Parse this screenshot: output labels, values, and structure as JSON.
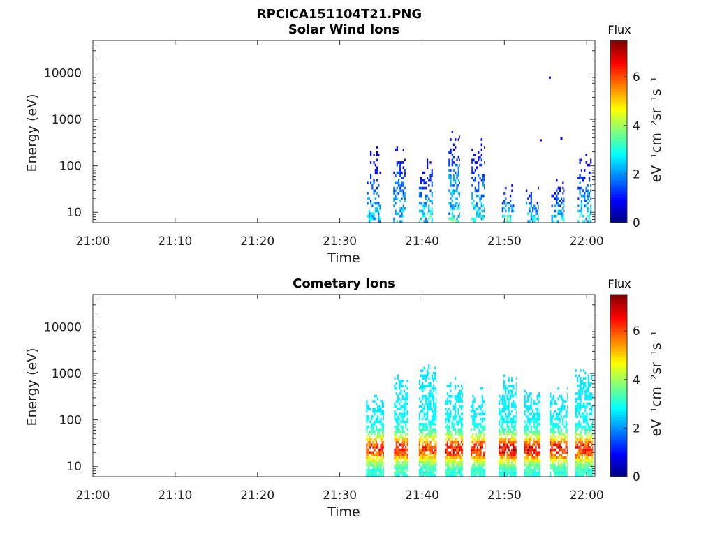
{
  "figure_title": "RPCICA151104T21.PNG",
  "chart_data": [
    {
      "type": "heatmap",
      "title": "Solar Wind Ions",
      "xlabel": "Time",
      "ylabel": "Energy (eV)",
      "x_tick_labels": [
        "21:00",
        "21:10",
        "21:20",
        "21:30",
        "21:40",
        "21:50",
        "22:00"
      ],
      "x_tick_minutes": [
        0,
        10,
        20,
        30,
        40,
        50,
        60
      ],
      "xlim_minutes": [
        0,
        61
      ],
      "y_scale": "log",
      "ylim": [
        6,
        50000
      ],
      "y_tick_labels": [
        "10",
        "100",
        "1000",
        "10000"
      ],
      "y_tick_values": [
        10,
        100,
        1000,
        10000
      ],
      "colorbar": {
        "title": "Flux",
        "label": "eV⁻¹cm⁻²sr⁻¹s⁻¹",
        "range": [
          0,
          7.5
        ],
        "tick_labels": [
          "0",
          "2",
          "4",
          "6"
        ],
        "tick_values": [
          0,
          2,
          4,
          6
        ],
        "colormap": "jet"
      },
      "bursts": [
        {
          "t_start": 33.3,
          "t_end": 35.0,
          "e_top": 300,
          "peak_flux": 3.2
        },
        {
          "t_start": 36.5,
          "t_end": 38.0,
          "e_top": 320,
          "peak_flux": 3.4
        },
        {
          "t_start": 39.6,
          "t_end": 41.3,
          "e_top": 170,
          "peak_flux": 3.6
        },
        {
          "t_start": 43.2,
          "t_end": 44.6,
          "e_top": 800,
          "peak_flux": 3.8
        },
        {
          "t_start": 46.0,
          "t_end": 47.6,
          "e_top": 420,
          "peak_flux": 3.4
        },
        {
          "t_start": 49.7,
          "t_end": 51.2,
          "e_top": 50,
          "peak_flux": 3.8
        },
        {
          "t_start": 52.6,
          "t_end": 54.2,
          "e_top": 40,
          "peak_flux": 3.6
        },
        {
          "t_start": 55.7,
          "t_end": 57.3,
          "e_top": 60,
          "peak_flux": 3.4
        },
        {
          "t_start": 58.9,
          "t_end": 60.6,
          "e_top": 200,
          "peak_flux": 3.4
        }
      ],
      "isolated_points": [
        {
          "t": 55.4,
          "e": 7800,
          "flux": 1.0
        },
        {
          "t": 56.8,
          "e": 380,
          "flux": 1.0
        },
        {
          "t": 54.3,
          "e": 350,
          "flux": 1.0
        }
      ]
    },
    {
      "type": "heatmap",
      "title": "Cometary Ions",
      "xlabel": "Time",
      "ylabel": "Energy (eV)",
      "x_tick_labels": [
        "21:00",
        "21:10",
        "21:20",
        "21:30",
        "21:40",
        "21:50",
        "22:00"
      ],
      "x_tick_minutes": [
        0,
        10,
        20,
        30,
        40,
        50,
        60
      ],
      "xlim_minutes": [
        0,
        61
      ],
      "y_scale": "log",
      "ylim": [
        6,
        50000
      ],
      "y_tick_labels": [
        "10",
        "100",
        "1000",
        "10000"
      ],
      "y_tick_values": [
        10,
        100,
        1000,
        10000
      ],
      "colorbar": {
        "title": "Flux",
        "label": "eV⁻¹cm⁻²sr⁻¹s⁻¹",
        "range": [
          0,
          7.5
        ],
        "tick_labels": [
          "0",
          "2",
          "4",
          "6"
        ],
        "tick_values": [
          0,
          2,
          4,
          6
        ],
        "colormap": "jet"
      },
      "bursts": [
        {
          "t_start": 33.2,
          "t_end": 35.3,
          "e_top": 450,
          "peak_flux": 6.3
        },
        {
          "t_start": 36.6,
          "t_end": 38.3,
          "e_top": 1300,
          "peak_flux": 6.4
        },
        {
          "t_start": 39.6,
          "t_end": 41.7,
          "e_top": 1500,
          "peak_flux": 6.0
        },
        {
          "t_start": 42.8,
          "t_end": 44.9,
          "e_top": 800,
          "peak_flux": 6.5
        },
        {
          "t_start": 45.9,
          "t_end": 47.7,
          "e_top": 500,
          "peak_flux": 6.5
        },
        {
          "t_start": 49.3,
          "t_end": 51.4,
          "e_top": 1000,
          "peak_flux": 6.8
        },
        {
          "t_start": 52.4,
          "t_end": 54.3,
          "e_top": 450,
          "peak_flux": 6.6
        },
        {
          "t_start": 55.5,
          "t_end": 57.6,
          "e_top": 600,
          "peak_flux": 6.5
        },
        {
          "t_start": 58.6,
          "t_end": 60.7,
          "e_top": 1400,
          "peak_flux": 6.4
        }
      ],
      "isolated_points": []
    }
  ]
}
